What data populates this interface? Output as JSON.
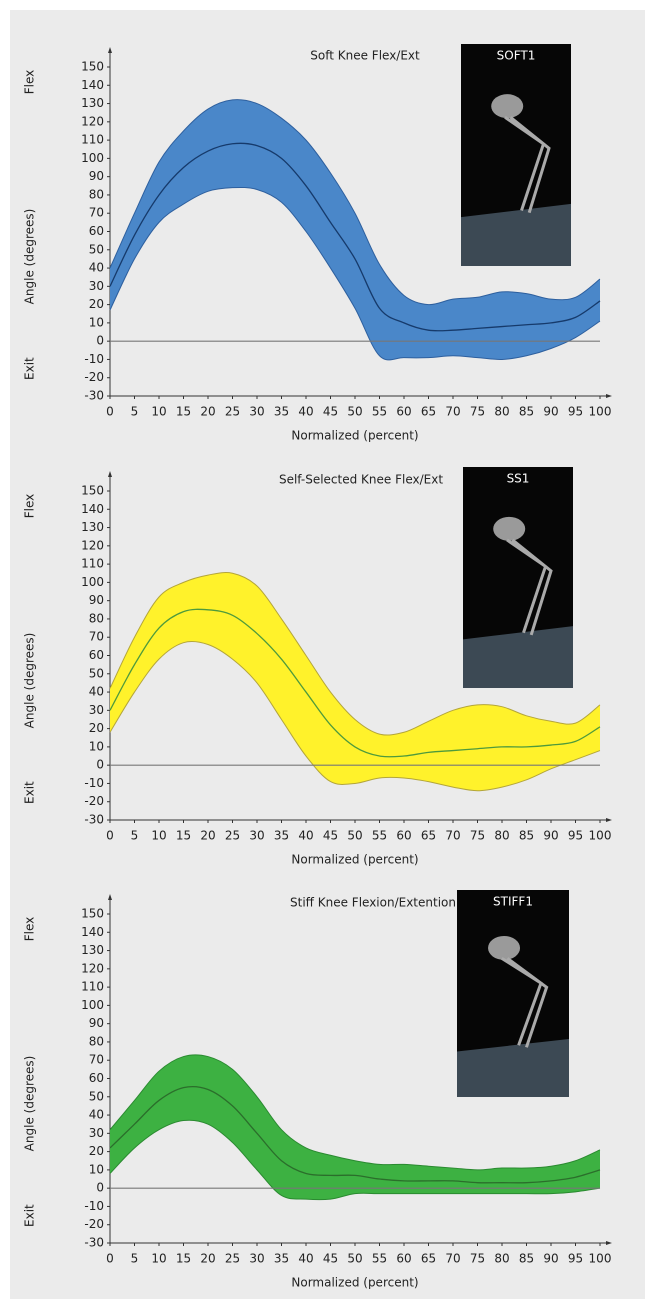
{
  "chart_data": [
    {
      "type": "band-line",
      "title": "Soft Knee Flex/Ext",
      "image_label": "SOFT1",
      "y_label": "Angle (degrees)",
      "y_top_label": "Flex",
      "y_bottom_label": "Exit",
      "x_label": "Normalized (percent)",
      "x": [
        0,
        5,
        10,
        15,
        20,
        25,
        30,
        35,
        40,
        45,
        50,
        55,
        60,
        65,
        70,
        75,
        80,
        85,
        90,
        95,
        100
      ],
      "mean": [
        30,
        58,
        80,
        95,
        104,
        108,
        107,
        100,
        85,
        65,
        45,
        18,
        10,
        6,
        6,
        7,
        8,
        9,
        10,
        13,
        22
      ],
      "upper": [
        40,
        70,
        98,
        115,
        127,
        132,
        130,
        122,
        110,
        92,
        70,
        42,
        25,
        20,
        23,
        24,
        27,
        26,
        23,
        24,
        34
      ],
      "lower": [
        17,
        45,
        65,
        75,
        82,
        84,
        83,
        76,
        60,
        40,
        18,
        -8,
        -9,
        -9,
        -8,
        -9,
        -10,
        -8,
        -4,
        2,
        11
      ],
      "band_color": "#4a87c9",
      "edge_color": "#2d5f9e",
      "color": "#163a6b",
      "xlim": [
        0,
        100
      ],
      "xticks": [
        0,
        5,
        10,
        15,
        20,
        25,
        30,
        35,
        40,
        45,
        50,
        55,
        60,
        65,
        70,
        75,
        80,
        85,
        90,
        95,
        100
      ],
      "ylim": [
        -30,
        150
      ],
      "yticks": [
        -30,
        -20,
        -10,
        0,
        10,
        20,
        30,
        40,
        50,
        60,
        70,
        80,
        90,
        100,
        110,
        120,
        130,
        140,
        150
      ]
    },
    {
      "type": "band-line",
      "title": "Self-Selected Knee Flex/Ext",
      "image_label": "SS1",
      "y_label": "Angle (degrees)",
      "y_top_label": "Flex",
      "y_bottom_label": "Exit",
      "x_label": "Normalized (percent)",
      "x": [
        0,
        5,
        10,
        15,
        20,
        25,
        30,
        35,
        40,
        45,
        50,
        55,
        60,
        65,
        70,
        75,
        80,
        85,
        90,
        95,
        100
      ],
      "mean": [
        30,
        55,
        75,
        84,
        85,
        82,
        72,
        58,
        40,
        22,
        10,
        5,
        5,
        7,
        8,
        9,
        10,
        10,
        11,
        13,
        21
      ],
      "upper": [
        42,
        70,
        92,
        100,
        104,
        105,
        98,
        80,
        60,
        40,
        25,
        17,
        18,
        24,
        30,
        33,
        32,
        27,
        24,
        23,
        33
      ],
      "lower": [
        18,
        40,
        58,
        67,
        66,
        58,
        45,
        25,
        5,
        -9,
        -10,
        -7,
        -7,
        -9,
        -12,
        -14,
        -12,
        -8,
        -2,
        3,
        8
      ],
      "band_color": "#fff22b",
      "edge_color": "#b3a53a",
      "color": "#4e9a3c",
      "xlim": [
        0,
        100
      ],
      "xticks": [
        0,
        5,
        10,
        15,
        20,
        25,
        30,
        35,
        40,
        45,
        50,
        55,
        60,
        65,
        70,
        75,
        80,
        85,
        90,
        95,
        100
      ],
      "ylim": [
        -30,
        150
      ],
      "yticks": [
        -30,
        -20,
        -10,
        0,
        10,
        20,
        30,
        40,
        50,
        60,
        70,
        80,
        90,
        100,
        110,
        120,
        130,
        140,
        150
      ]
    },
    {
      "type": "band-line",
      "title": "Stiff Knee Flexion/Extention",
      "image_label": "STIFF1",
      "y_label": "Angle (degrees)",
      "y_top_label": "Flex",
      "y_bottom_label": "Exit",
      "x_label": "Normalized (percent)",
      "x": [
        0,
        5,
        10,
        15,
        20,
        25,
        30,
        35,
        40,
        45,
        50,
        55,
        60,
        65,
        70,
        75,
        80,
        85,
        90,
        95,
        100
      ],
      "mean": [
        22,
        35,
        48,
        55,
        54,
        45,
        30,
        15,
        8,
        7,
        7,
        5,
        4,
        4,
        4,
        3,
        3,
        3,
        4,
        6,
        10
      ],
      "upper": [
        32,
        48,
        64,
        72,
        72,
        65,
        50,
        32,
        22,
        18,
        15,
        13,
        13,
        12,
        11,
        10,
        11,
        11,
        12,
        15,
        21
      ],
      "lower": [
        8,
        22,
        32,
        37,
        35,
        25,
        10,
        -4,
        -6,
        -6,
        -3,
        -3,
        -3,
        -3,
        -3,
        -3,
        -3,
        -3,
        -3,
        -2,
        0
      ],
      "band_color": "#3db142",
      "edge_color": "#2a8a30",
      "color": "#2b6e2b",
      "xlim": [
        0,
        100
      ],
      "xticks": [
        0,
        5,
        10,
        15,
        20,
        25,
        30,
        35,
        40,
        45,
        50,
        55,
        60,
        65,
        70,
        75,
        80,
        85,
        90,
        95,
        100
      ],
      "ylim": [
        -30,
        150
      ],
      "yticks": [
        -30,
        -20,
        -10,
        0,
        10,
        20,
        30,
        40,
        50,
        60,
        70,
        80,
        90,
        100,
        110,
        120,
        130,
        140,
        150
      ]
    }
  ]
}
